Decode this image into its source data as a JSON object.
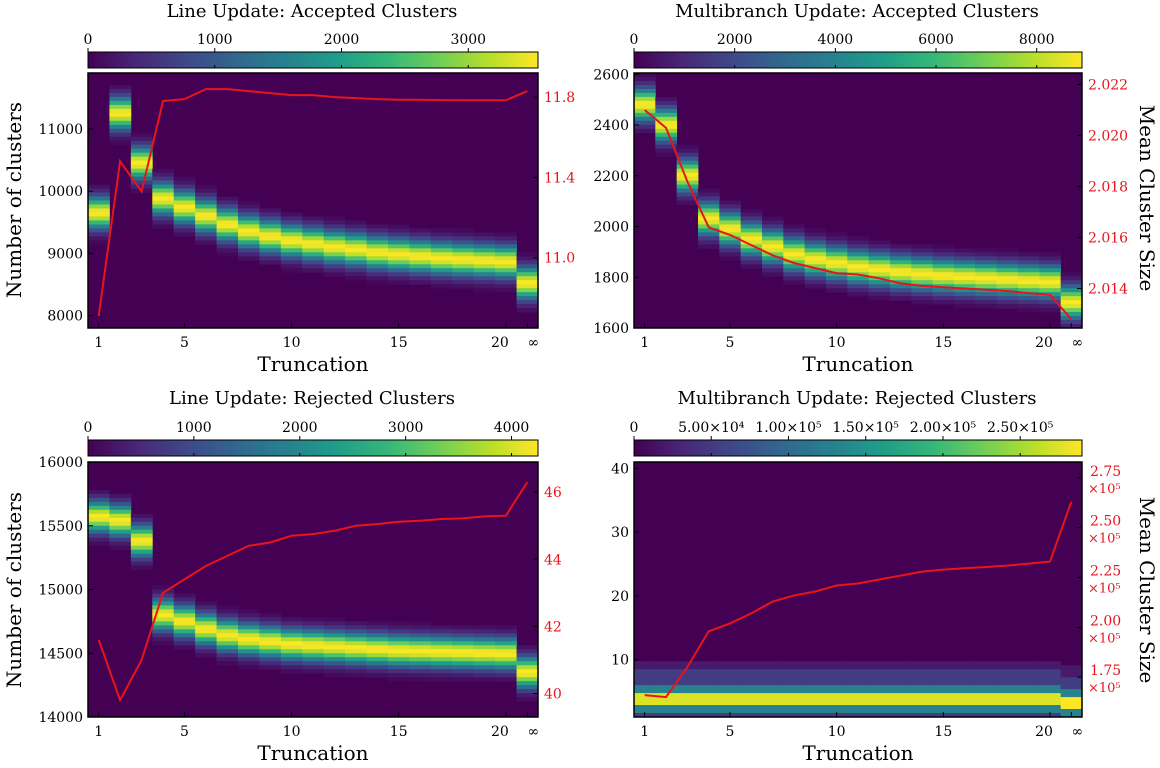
{
  "chart_data": [
    {
      "type": "heatmap",
      "title": "Line Update: Accepted Clusters",
      "xlabel": "Truncation",
      "ylabel": "Number of clusters",
      "y2label": "",
      "x_categories": [
        "1",
        "2",
        "3",
        "4",
        "5",
        "6",
        "7",
        "8",
        "9",
        "10",
        "11",
        "12",
        "13",
        "14",
        "15",
        "16",
        "17",
        "18",
        "19",
        "20",
        "∞"
      ],
      "x_ticks": [
        {
          "i": 0,
          "label": "1"
        },
        {
          "i": 4,
          "label": "5"
        },
        {
          "i": 9,
          "label": "10"
        },
        {
          "i": 14,
          "label": "15"
        },
        {
          "i": 19,
          "label": "20"
        },
        {
          "i": 20,
          "label": "∞"
        }
      ],
      "ylim": [
        7800,
        11900
      ],
      "y_ticks": [
        {
          "v": 8000,
          "label": "8000"
        },
        {
          "v": 9000,
          "label": "9000"
        },
        {
          "v": 10000,
          "label": "10000"
        },
        {
          "v": 11000,
          "label": "11000"
        }
      ],
      "heat_peaks": [
        9650,
        11250,
        10450,
        9880,
        9740,
        9600,
        9460,
        9350,
        9270,
        9200,
        9150,
        9100,
        9060,
        9010,
        8980,
        8950,
        8920,
        8900,
        8880,
        8860,
        8520
      ],
      "heat_sigma": 170,
      "mean_cluster_size": [
        10.71,
        11.48,
        11.33,
        11.78,
        11.79,
        11.84,
        11.84,
        11.83,
        11.82,
        11.81,
        11.81,
        11.8,
        11.795,
        11.79,
        11.787,
        11.787,
        11.785,
        11.784,
        11.784,
        11.784,
        11.83
      ],
      "y2lim": [
        10.65,
        11.92
      ],
      "y2_ticks": [
        {
          "v": 11.0,
          "label": "11.0"
        },
        {
          "v": 11.4,
          "label": "11.4"
        },
        {
          "v": 11.8,
          "label": "11.8"
        }
      ],
      "colorbar": {
        "min": 0,
        "max": 3550,
        "ticks": [
          {
            "v": 0,
            "label": "0"
          },
          {
            "v": 1000,
            "label": "1000"
          },
          {
            "v": 2000,
            "label": "2000"
          },
          {
            "v": 3000,
            "label": "3000"
          }
        ]
      }
    },
    {
      "type": "heatmap",
      "title": "Multibranch Update: Accepted Clusters",
      "xlabel": "Truncation",
      "ylabel": "",
      "y2label": "Mean Cluster Size",
      "x_categories": [
        "1",
        "2",
        "3",
        "4",
        "5",
        "6",
        "7",
        "8",
        "9",
        "10",
        "11",
        "12",
        "13",
        "14",
        "15",
        "16",
        "17",
        "18",
        "19",
        "20",
        "∞"
      ],
      "x_ticks": [
        {
          "i": 0,
          "label": "1"
        },
        {
          "i": 4,
          "label": "5"
        },
        {
          "i": 9,
          "label": "10"
        },
        {
          "i": 14,
          "label": "15"
        },
        {
          "i": 19,
          "label": "20"
        },
        {
          "i": 20,
          "label": "∞"
        }
      ],
      "ylim": [
        1600,
        2605
      ],
      "y_ticks": [
        {
          "v": 1600,
          "label": "1600"
        },
        {
          "v": 1800,
          "label": "1800"
        },
        {
          "v": 2000,
          "label": "2000"
        },
        {
          "v": 2200,
          "label": "2200"
        },
        {
          "v": 2400,
          "label": "2400"
        },
        {
          "v": 2600,
          "label": "2600"
        }
      ],
      "heat_peaks": [
        2480,
        2400,
        2200,
        2030,
        1990,
        1950,
        1920,
        1890,
        1870,
        1855,
        1840,
        1830,
        1820,
        1812,
        1805,
        1800,
        1795,
        1790,
        1785,
        1780,
        1700
      ],
      "heat_sigma": 42,
      "mean_cluster_size": [
        2.021,
        2.0203,
        2.0182,
        2.0164,
        2.0161,
        2.0157,
        2.0153,
        2.015,
        2.0148,
        2.0146,
        2.01455,
        2.0144,
        2.0142,
        2.0141,
        2.01405,
        2.014,
        2.01395,
        2.0139,
        2.01382,
        2.01375,
        2.0128
      ],
      "y2lim": [
        2.01245,
        2.02245
      ],
      "y2_ticks": [
        {
          "v": 2.014,
          "label": "2.014"
        },
        {
          "v": 2.016,
          "label": "2.016"
        },
        {
          "v": 2.018,
          "label": "2.018"
        },
        {
          "v": 2.02,
          "label": "2.020"
        },
        {
          "v": 2.022,
          "label": "2.022"
        }
      ],
      "colorbar": {
        "min": 0,
        "max": 8900,
        "ticks": [
          {
            "v": 0,
            "label": "0"
          },
          {
            "v": 2000,
            "label": "2000"
          },
          {
            "v": 4000,
            "label": "4000"
          },
          {
            "v": 6000,
            "label": "6000"
          },
          {
            "v": 8000,
            "label": "8000"
          }
        ]
      }
    },
    {
      "type": "heatmap",
      "title": "Line Update: Rejected Clusters",
      "xlabel": "Truncation",
      "ylabel": "Number of clusters",
      "y2label": "",
      "x_categories": [
        "1",
        "2",
        "3",
        "4",
        "5",
        "6",
        "7",
        "8",
        "9",
        "10",
        "11",
        "12",
        "13",
        "14",
        "15",
        "16",
        "17",
        "18",
        "19",
        "20",
        "∞"
      ],
      "x_ticks": [
        {
          "i": 0,
          "label": "1"
        },
        {
          "i": 4,
          "label": "5"
        },
        {
          "i": 9,
          "label": "10"
        },
        {
          "i": 14,
          "label": "15"
        },
        {
          "i": 19,
          "label": "20"
        },
        {
          "i": 20,
          "label": "∞"
        }
      ],
      "ylim": [
        14000,
        16000
      ],
      "y_ticks": [
        {
          "v": 14000,
          "label": "14000"
        },
        {
          "v": 14500,
          "label": "14500"
        },
        {
          "v": 15000,
          "label": "15000"
        },
        {
          "v": 15500,
          "label": "15500"
        },
        {
          "v": 16000,
          "label": "16000"
        }
      ],
      "heat_peaks": [
        15570,
        15540,
        15380,
        14800,
        14750,
        14690,
        14640,
        14610,
        14590,
        14570,
        14560,
        14550,
        14540,
        14530,
        14520,
        14515,
        14510,
        14505,
        14500,
        14495,
        14350
      ],
      "heat_sigma": 80,
      "mean_cluster_size": [
        41.6,
        39.8,
        41.0,
        43.0,
        43.4,
        43.8,
        44.1,
        44.4,
        44.5,
        44.7,
        44.75,
        44.85,
        45.0,
        45.05,
        45.12,
        45.15,
        45.2,
        45.22,
        45.28,
        45.3,
        46.3
      ],
      "y2lim": [
        39.3,
        46.9
      ],
      "y2_ticks": [
        {
          "v": 40,
          "label": "40"
        },
        {
          "v": 42,
          "label": "42"
        },
        {
          "v": 44,
          "label": "44"
        },
        {
          "v": 46,
          "label": "46"
        }
      ],
      "colorbar": {
        "min": 0,
        "max": 4250,
        "ticks": [
          {
            "v": 0,
            "label": "0"
          },
          {
            "v": 1000,
            "label": "1000"
          },
          {
            "v": 2000,
            "label": "2000"
          },
          {
            "v": 3000,
            "label": "3000"
          },
          {
            "v": 4000,
            "label": "4000"
          }
        ]
      }
    },
    {
      "type": "heatmap",
      "title": "Multibranch Update: Rejected Clusters",
      "xlabel": "Truncation",
      "ylabel": "",
      "y2label": "Mean Cluster Size",
      "x_categories": [
        "1",
        "2",
        "3",
        "4",
        "5",
        "6",
        "7",
        "8",
        "9",
        "10",
        "11",
        "12",
        "13",
        "14",
        "15",
        "16",
        "17",
        "18",
        "19",
        "20",
        "∞"
      ],
      "x_ticks": [
        {
          "i": 0,
          "label": "1"
        },
        {
          "i": 4,
          "label": "5"
        },
        {
          "i": 9,
          "label": "10"
        },
        {
          "i": 14,
          "label": "15"
        },
        {
          "i": 19,
          "label": "20"
        },
        {
          "i": 20,
          "label": "∞"
        }
      ],
      "ylim": [
        1,
        41
      ],
      "y_ticks": [
        {
          "v": 10,
          "label": "10"
        },
        {
          "v": 20,
          "label": "20"
        },
        {
          "v": 30,
          "label": "30"
        },
        {
          "v": 40,
          "label": "40"
        }
      ],
      "heat_peaks": [
        4,
        4,
        4,
        4,
        4,
        4,
        4,
        4,
        4,
        4,
        4,
        4,
        4,
        4,
        4,
        4,
        4,
        4,
        4,
        4,
        3
      ],
      "heat_sigma": 1.3,
      "mean_cluster_size": [
        166000,
        165000,
        180000,
        198000,
        202000,
        207000,
        213000,
        216000,
        218000,
        221000,
        222000,
        224000,
        226000,
        228000,
        229000,
        229700,
        230300,
        231000,
        232000,
        233000,
        263000
      ],
      "y2lim": [
        155000,
        283000
      ],
      "y2_ticks": [
        {
          "v": 175000,
          "l1": "1.75",
          "l2": "×10⁵"
        },
        {
          "v": 200000,
          "l1": "2.00",
          "l2": "×10⁵"
        },
        {
          "v": 225000,
          "l1": "2.25",
          "l2": "×10⁵"
        },
        {
          "v": 250000,
          "l1": "2.50",
          "l2": "×10⁵"
        },
        {
          "v": 275000,
          "l1": "2.75",
          "l2": "×10⁵"
        }
      ],
      "colorbar": {
        "min": 0,
        "max": 290000,
        "ticks": [
          {
            "v": 0,
            "label": "0"
          },
          {
            "v": 50000,
            "label": "5.00×10⁴"
          },
          {
            "v": 100000,
            "label": "1.00×10⁵"
          },
          {
            "v": 150000,
            "label": "1.50×10⁵"
          },
          {
            "v": 200000,
            "label": "2.00×10⁵"
          },
          {
            "v": 250000,
            "label": "2.50×10⁵"
          }
        ]
      }
    }
  ],
  "colors": {
    "line": "#e8141c",
    "tick_right": "#e8141c",
    "viridis": [
      "#440154",
      "#482878",
      "#3e4989",
      "#31688e",
      "#26828e",
      "#1f9e89",
      "#35b779",
      "#6ece58",
      "#b5de2b",
      "#fde725"
    ]
  }
}
